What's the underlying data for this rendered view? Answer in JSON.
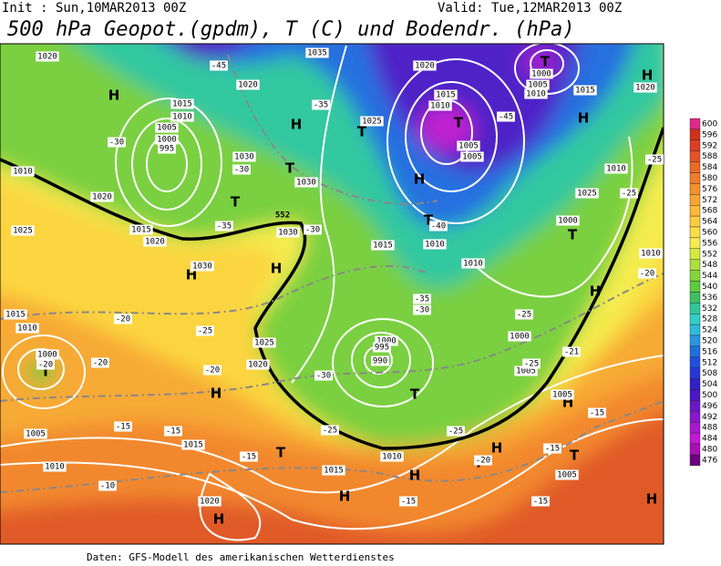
{
  "header": {
    "init": "Init : Sun,10MAR2013 00Z",
    "valid": "Valid: Tue,12MAR2013 00Z",
    "title": "500 hPa Geopot.(gpdm), T (C) und Bodendr. (hPa)"
  },
  "footer": "Daten: GFS-Modell des amerikanischen Wetterdienstes",
  "colorbar": {
    "levels": [
      600,
      596,
      592,
      588,
      584,
      580,
      576,
      572,
      568,
      564,
      560,
      556,
      552,
      548,
      544,
      540,
      536,
      532,
      528,
      524,
      520,
      516,
      512,
      508,
      504,
      500,
      496,
      492,
      488,
      484,
      480,
      476
    ],
    "colors": [
      "#e0288c",
      "#d2301e",
      "#dc3e22",
      "#e45424",
      "#ea6a28",
      "#f07e2a",
      "#f4922e",
      "#f7a632",
      "#f9ba38",
      "#fbcc40",
      "#fcde48",
      "#f6ec50",
      "#d4ea40",
      "#acde40",
      "#84d63c",
      "#5ccb40",
      "#3ec060",
      "#30c89a",
      "#30d0c8",
      "#2cbce0",
      "#2896e0",
      "#2070e0",
      "#2050e0",
      "#2838d8",
      "#3020c8",
      "#4818c8",
      "#6818c8",
      "#8818d0",
      "#a818d0",
      "#c418d6",
      "#a810b4",
      "#6c0084"
    ]
  },
  "map_labels": {
    "highs_lows": [
      "H",
      "H",
      "T",
      "T",
      "H",
      "H",
      "T",
      "H",
      "T",
      "T",
      "T",
      "H",
      "H",
      "T",
      "H",
      "T",
      "H",
      "T",
      "T",
      "H",
      "T",
      "H",
      "H",
      "H",
      "T",
      "H",
      "H"
    ],
    "pressure": [
      "1020",
      "1015",
      "1010",
      "995",
      "1000",
      "1005",
      "1020",
      "1030",
      "1030",
      "1015",
      "1020",
      "1030",
      "1030",
      "1025",
      "1025",
      "1020",
      "1015",
      "1010",
      "1005",
      "1005",
      "1000",
      "1005",
      "1010",
      "1015",
      "1020",
      "1010",
      "1025",
      "1000",
      "1015",
      "1010",
      "1010",
      "1025",
      "1020",
      "1000",
      "995",
      "990",
      "1000",
      "1005",
      "1005",
      "1010",
      "1015",
      "1010",
      "1000",
      "1005",
      "1010",
      "1015",
      "1015",
      "1010",
      "1020",
      "1005",
      "1035",
      "1020",
      "1010"
    ],
    "temperature": [
      "-45",
      "-35",
      "-30",
      "-30",
      "-35",
      "-30",
      "-40",
      "-45",
      "-25",
      "-25",
      "-20",
      "-30",
      "-35",
      "-25",
      "-20",
      "-25",
      "-20",
      "-20",
      "-30",
      "-25",
      "-25",
      "-20",
      "-15",
      "-15",
      "-15",
      "-10",
      "-15",
      "-15",
      "-15",
      "-15",
      "-21",
      "-25",
      "-20"
    ],
    "isohypse": "552"
  }
}
